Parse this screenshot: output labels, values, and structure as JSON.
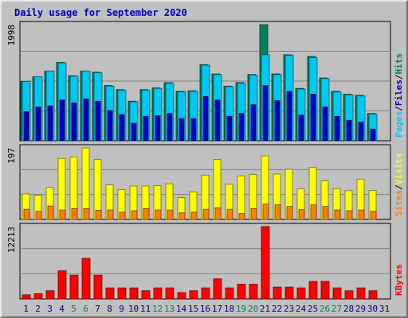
{
  "chart_data": {
    "type": "bar",
    "title": "Daily usage for September 2020",
    "categories": [
      "1",
      "2",
      "3",
      "4",
      "5",
      "6",
      "7",
      "8",
      "9",
      "10",
      "11",
      "12",
      "13",
      "14",
      "15",
      "16",
      "17",
      "18",
      "19",
      "20",
      "21",
      "22",
      "23",
      "24",
      "25",
      "26",
      "27",
      "28",
      "29",
      "30",
      "31"
    ],
    "weekend_days": [
      "5",
      "6",
      "12",
      "13",
      "19",
      "20",
      "26",
      "27"
    ],
    "colors": {
      "hits": "#00805c",
      "files": "#00c8f0",
      "pages": "#0000c0",
      "visits": "#ffff00",
      "sites": "#ff8000",
      "kbytes": "#ff0000",
      "weekday_label": "#000080",
      "weekend_label": "#00805c",
      "legend_separator": "#000000"
    },
    "panels": [
      {
        "id": "hits-files-pages",
        "ymax": 1998,
        "ymax_label": "1998",
        "legend": [
          {
            "label": "Pages",
            "color": "#00c8f0"
          },
          {
            "label": "/",
            "color": "#000000"
          },
          {
            "label": "Files",
            "color": "#0000c0"
          },
          {
            "label": "/",
            "color": "#000000"
          },
          {
            "label": "Hits",
            "color": "#00805c"
          }
        ],
        "series": [
          {
            "name": "Hits",
            "color": "#00805c",
            "values": [
              1020,
              1100,
              1200,
              1350,
              1120,
              1200,
              1180,
              950,
              880,
              680,
              880,
              910,
              1000,
              850,
              860,
              1310,
              1150,
              940,
              1000,
              1140,
              1998,
              1150,
              1480,
              900,
              1450,
              1080,
              850,
              800,
              780,
              470,
              0
            ]
          },
          {
            "name": "Files",
            "color": "#00c8f0",
            "values": [
              1020,
              1100,
              1200,
              1340,
              1110,
              1200,
              1170,
              940,
              870,
              670,
              870,
              900,
              990,
              840,
              850,
              1300,
              1140,
              930,
              990,
              1130,
              1480,
              1140,
              1470,
              890,
              1430,
              1070,
              840,
              790,
              770,
              460,
              0
            ]
          },
          {
            "name": "Pages",
            "color": "#0000c0",
            "values": [
              500,
              580,
              600,
              700,
              650,
              720,
              680,
              520,
              450,
              300,
              420,
              430,
              470,
              380,
              380,
              760,
              700,
              420,
              470,
              620,
              950,
              690,
              850,
              440,
              800,
              580,
              420,
              350,
              320,
              200,
              0
            ]
          }
        ]
      },
      {
        "id": "visits-sites",
        "ymax": 197,
        "ymax_label": "197",
        "legend": [
          {
            "label": "Sites",
            "color": "#ff8000"
          },
          {
            "label": "/",
            "color": "#000000"
          },
          {
            "label": "Visits",
            "color": "#ffff00"
          }
        ],
        "series": [
          {
            "name": "Visits",
            "color": "#ffff00",
            "values": [
              70,
              66,
              88,
              168,
              172,
              197,
              165,
              95,
              82,
              92,
              92,
              93,
              98,
              60,
              76,
              122,
              165,
              97,
              120,
              124,
              175,
              125,
              138,
              84,
              143,
              106,
              85,
              79,
              111,
              80,
              0
            ]
          },
          {
            "name": "Sites",
            "color": "#ff8000",
            "values": [
              28,
              22,
              37,
              26,
              30,
              30,
              25,
              26,
              20,
              24,
              30,
              26,
              26,
              18,
              20,
              28,
              32,
              28,
              16,
              30,
              42,
              40,
              36,
              27,
              40,
              36,
              26,
              24,
              26,
              22,
              0
            ]
          }
        ]
      },
      {
        "id": "kbytes",
        "ymax": 12213,
        "ymax_label": "12213",
        "legend": [
          {
            "label": "KBytes",
            "color": "#ff0000"
          }
        ],
        "series": [
          {
            "name": "KBytes",
            "color": "#ff0000",
            "values": [
              700,
              880,
              1380,
              4750,
              4000,
              6850,
              4000,
              1870,
              1870,
              1870,
              1380,
              1870,
              1870,
              1080,
              1380,
              1870,
              3400,
              1870,
              2500,
              2500,
              12213,
              2000,
              2000,
              1870,
              2950,
              2950,
              1870,
              1380,
              1870,
              1380,
              0
            ]
          }
        ]
      }
    ]
  }
}
